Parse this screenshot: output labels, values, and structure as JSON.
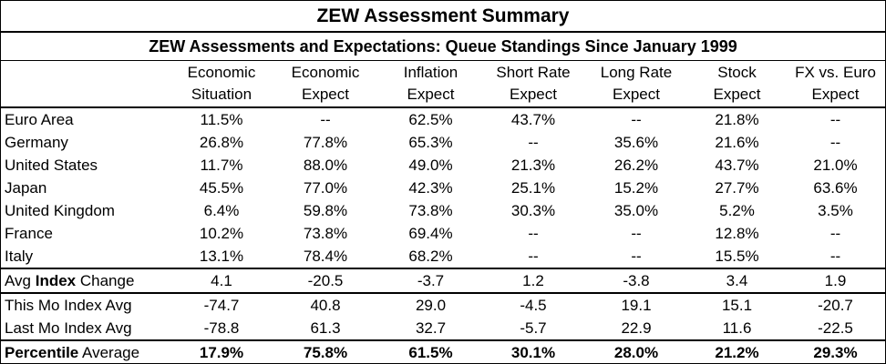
{
  "title": "ZEW Assessment Summary",
  "subtitle": "ZEW Assessments and Expectations: Queue Standings Since January 1999",
  "headers": [
    {
      "line1": "Economic",
      "line2": "Situation"
    },
    {
      "line1": "Economic",
      "line2": "Expect"
    },
    {
      "line1": "Inflation",
      "line2": "Expect"
    },
    {
      "line1": "Short Rate",
      "line2": "Expect"
    },
    {
      "line1": "Long Rate",
      "line2": "Expect"
    },
    {
      "line1": "Stock",
      "line2": "Expect"
    },
    {
      "line1": "FX vs. Euro",
      "line2": "Expect"
    }
  ],
  "countries": [
    {
      "name": "Euro Area",
      "values": [
        "11.5%",
        "--",
        "62.5%",
        "43.7%",
        "--",
        "21.8%",
        "--"
      ]
    },
    {
      "name": "Germany",
      "values": [
        "26.8%",
        "77.8%",
        "65.3%",
        "--",
        "35.6%",
        "21.6%",
        "--"
      ]
    },
    {
      "name": "United States",
      "values": [
        "11.7%",
        "88.0%",
        "49.0%",
        "21.3%",
        "26.2%",
        "43.7%",
        "21.0%"
      ]
    },
    {
      "name": "Japan",
      "values": [
        "45.5%",
        "77.0%",
        "42.3%",
        "25.1%",
        "15.2%",
        "27.7%",
        "63.6%"
      ]
    },
    {
      "name": "United Kingdom",
      "values": [
        "6.4%",
        "59.8%",
        "73.8%",
        "30.3%",
        "35.0%",
        "5.2%",
        "3.5%"
      ]
    },
    {
      "name": "France",
      "values": [
        "10.2%",
        "73.8%",
        "69.4%",
        "--",
        "--",
        "12.8%",
        "--"
      ]
    },
    {
      "name": "Italy",
      "values": [
        "13.1%",
        "78.4%",
        "68.2%",
        "--",
        "--",
        "15.5%",
        "--"
      ]
    }
  ],
  "avg_change": {
    "prefix": "Avg ",
    "bold": "Index",
    "suffix": " Change",
    "values": [
      "4.1",
      "-20.5",
      "-3.7",
      "1.2",
      "-3.8",
      "3.4",
      "1.9"
    ]
  },
  "this_mo": {
    "label": "This Mo Index Avg",
    "values": [
      "-74.7",
      "40.8",
      "29.0",
      "-4.5",
      "19.1",
      "15.1",
      "-20.7"
    ]
  },
  "last_mo": {
    "label": "Last Mo Index Avg",
    "values": [
      "-78.8",
      "61.3",
      "32.7",
      "-5.7",
      "22.9",
      "11.6",
      "-22.5"
    ]
  },
  "percentile": {
    "bold": "Percentile",
    "suffix": " Average",
    "values": [
      "17.9%",
      "75.8%",
      "61.5%",
      "30.1%",
      "28.0%",
      "21.2%",
      "29.3%"
    ]
  }
}
